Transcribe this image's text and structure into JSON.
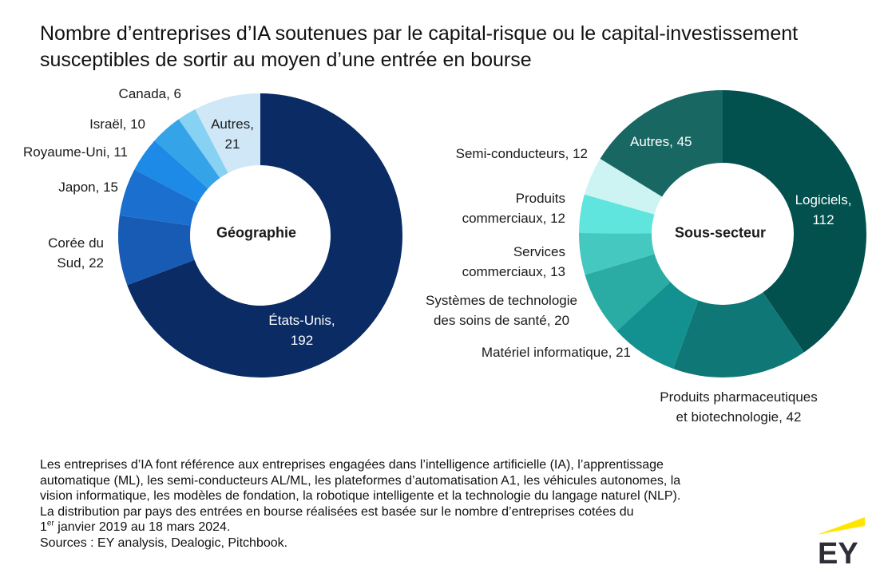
{
  "title": "Nombre d’entreprises d’IA soutenues par le capital-risque ou le capital-investissement susceptibles de sortir au moyen d’une entrée en bourse",
  "chart_data": [
    {
      "type": "pie",
      "variant": "donut",
      "center_label": "Géographie",
      "categories": [
        "États-Unis",
        "Corée du Sud",
        "Japon",
        "Royaume-Uni",
        "Israël",
        "Canada",
        "Autres"
      ],
      "values": [
        192,
        22,
        15,
        11,
        10,
        6,
        21
      ],
      "labels": [
        "États-Unis, 192",
        "Corée du Sud, 22",
        "Japon, 15",
        "Royaume-Uni, 11",
        "Israël, 10",
        "Canada, 6",
        "Autres, 21"
      ],
      "colors": [
        "#0a2b63",
        "#175bb5",
        "#1b6fcf",
        "#1c8ae6",
        "#35a3e8",
        "#87d1f2",
        "#d0e7f8"
      ]
    },
    {
      "type": "pie",
      "variant": "donut",
      "center_label": "Sous-secteur",
      "categories": [
        "Logiciels",
        "Produits pharmaceutiques et biotechnologie",
        "Matériel informatique",
        "Systèmes de technologie des soins de santé",
        "Services commerciaux",
        "Produits commerciaux",
        "Semi-conducteurs",
        "Autres"
      ],
      "values": [
        112,
        42,
        21,
        20,
        13,
        12,
        12,
        45
      ],
      "labels": [
        "Logiciels, 112",
        "Produits pharmaceutiques et biotechnologie, 42",
        "Matériel informatique, 21",
        "Systèmes de technologie des soins de santé, 20",
        "Services commerciaux, 13",
        "Produits commerciaux, 12",
        "Semi-conducteurs, 12",
        "Autres, 45"
      ],
      "colors": [
        "#02514f",
        "#0f7877",
        "#129190",
        "#2aaba4",
        "#45c8c0",
        "#5fe5de",
        "#cdf4f3",
        "#186763"
      ]
    }
  ],
  "notes": {
    "line1": "Les entreprises d’IA font référence aux entreprises engagées dans l’intelligence artificielle (IA), l’apprentissage",
    "line2": "automatique (ML), les semi-conducteurs AL/ML, les plateformes d’automatisation A1, les véhicules autonomes, la",
    "line3": "vision informatique, les modèles de fondation, la robotique intelligente et la technologie du langage naturel (NLP).",
    "line4": "La distribution par pays des entrées en bourse réalisées est basée sur le nombre d’entreprises cotées du",
    "line5_pre": "1",
    "line5_sup": "er",
    "line5_post": " janvier 2019 au 18 mars 2024.",
    "sources": "Sources : EY analysis, Dealogic, Pitchbook."
  },
  "logo": "EY"
}
